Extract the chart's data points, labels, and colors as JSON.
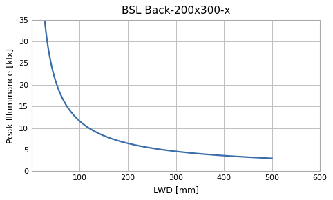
{
  "title": "BSL Back-200x300-x",
  "xlabel": "LWD [mm]",
  "ylabel": "Peak Illuminance [klx]",
  "line_color": "#3A6EAA",
  "line_width": 1.6,
  "xlim": [
    0,
    600
  ],
  "ylim": [
    0,
    35
  ],
  "xticks": [
    0,
    100,
    200,
    300,
    400,
    500,
    600
  ],
  "ytick_vals": [
    0,
    5,
    10,
    15,
    20,
    25,
    30,
    35
  ],
  "grid_color": "#BFBFBF",
  "background_color": "#FFFFFF",
  "curve_x_start": 25,
  "curve_x_end": 500,
  "curve_a": 561.0,
  "curve_b": 0.843,
  "title_fontsize": 11,
  "axis_label_fontsize": 9,
  "tick_fontsize": 8
}
